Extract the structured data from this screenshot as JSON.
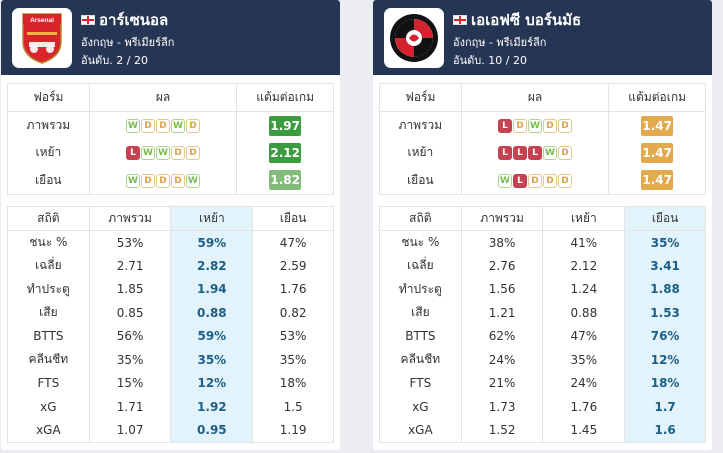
{
  "teams": [
    {
      "name": "อาร์เซนอล",
      "country_league": "อังกฤษ - พรีเมียร์ลีก",
      "rank": "อันดับ. 2 / 20",
      "logo_text": "Arsenal",
      "form_headers": [
        "ฟอร์ม",
        "ผล",
        "แต้มต่อเกม"
      ],
      "form_rows": [
        {
          "label": "ภาพรวม",
          "results": [
            "W",
            "D",
            "D",
            "W",
            "D"
          ],
          "ppg": "1.97",
          "ppg_color": "#3b9c3f"
        },
        {
          "label": "เหย้า",
          "results": [
            "L",
            "W",
            "W",
            "D",
            "D"
          ],
          "ppg": "2.12",
          "ppg_color": "#3b9c3f"
        },
        {
          "label": "เยือน",
          "results": [
            "W",
            "D",
            "D",
            "D",
            "W"
          ],
          "ppg": "1.82",
          "ppg_color": "#82bb7a"
        }
      ],
      "stats_headers": [
        "สถิติ",
        "ภาพรวม",
        "เหย้า",
        "เยือน"
      ],
      "highlight_col": 2,
      "stats_rows": [
        {
          "label": "ชนะ %",
          "values": [
            "53%",
            "59%",
            "47%"
          ]
        },
        {
          "label": "เฉลี่ย",
          "values": [
            "2.71",
            "2.82",
            "2.59"
          ]
        },
        {
          "label": "ทำประตู",
          "values": [
            "1.85",
            "1.94",
            "1.76"
          ]
        },
        {
          "label": "เสีย",
          "values": [
            "0.85",
            "0.88",
            "0.82"
          ]
        },
        {
          "label": "BTTS",
          "values": [
            "56%",
            "59%",
            "53%"
          ]
        },
        {
          "label": "คลีนชีท",
          "values": [
            "35%",
            "35%",
            "35%"
          ]
        },
        {
          "label": "FTS",
          "values": [
            "15%",
            "12%",
            "18%"
          ]
        },
        {
          "label": "xG",
          "values": [
            "1.71",
            "1.92",
            "1.5"
          ]
        },
        {
          "label": "xGA",
          "values": [
            "1.07",
            "0.95",
            "1.19"
          ]
        }
      ]
    },
    {
      "name": "เอเอฟซี บอร์นมัธ",
      "country_league": "อังกฤษ - พรีเมียร์ลีก",
      "rank": "อันดับ. 10 / 20",
      "logo_text": "",
      "form_headers": [
        "ฟอร์ม",
        "ผล",
        "แต้มต่อเกม"
      ],
      "form_rows": [
        {
          "label": "ภาพรวม",
          "results": [
            "L",
            "D",
            "W",
            "D",
            "D"
          ],
          "ppg": "1.47",
          "ppg_color": "#e3a94d"
        },
        {
          "label": "เหย้า",
          "results": [
            "L",
            "L",
            "L",
            "W",
            "D"
          ],
          "ppg": "1.47",
          "ppg_color": "#e3a94d"
        },
        {
          "label": "เยือน",
          "results": [
            "W",
            "L",
            "D",
            "D",
            "D"
          ],
          "ppg": "1.47",
          "ppg_color": "#e3a94d"
        }
      ],
      "stats_headers": [
        "สถิติ",
        "ภาพรวม",
        "เหย้า",
        "เยือน"
      ],
      "highlight_col": 3,
      "stats_rows": [
        {
          "label": "ชนะ %",
          "values": [
            "38%",
            "41%",
            "35%"
          ]
        },
        {
          "label": "เฉลี่ย",
          "values": [
            "2.76",
            "2.12",
            "3.41"
          ]
        },
        {
          "label": "ทำประตู",
          "values": [
            "1.56",
            "1.24",
            "1.88"
          ]
        },
        {
          "label": "เสีย",
          "values": [
            "1.21",
            "0.88",
            "1.53"
          ]
        },
        {
          "label": "BTTS",
          "values": [
            "62%",
            "47%",
            "76%"
          ]
        },
        {
          "label": "คลีนชีท",
          "values": [
            "24%",
            "35%",
            "12%"
          ]
        },
        {
          "label": "FTS",
          "values": [
            "21%",
            "24%",
            "18%"
          ]
        },
        {
          "label": "xG",
          "values": [
            "1.73",
            "1.76",
            "1.7"
          ]
        },
        {
          "label": "xGA",
          "values": [
            "1.52",
            "1.45",
            "1.6"
          ]
        }
      ]
    }
  ]
}
